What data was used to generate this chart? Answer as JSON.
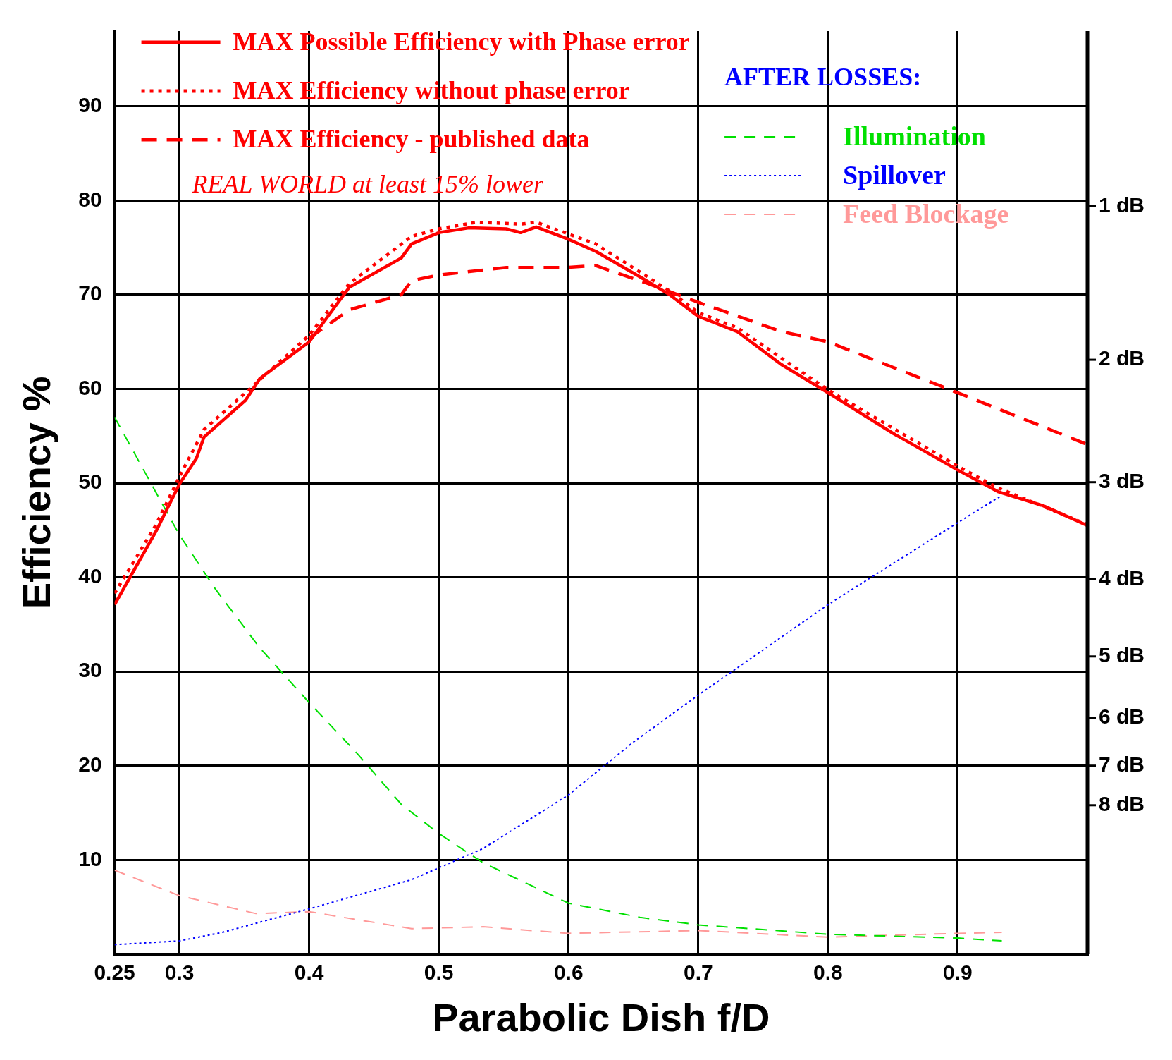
{
  "chart_data": {
    "type": "line",
    "xlabel": "Parabolic Dish f/D",
    "ylabel": "Efficiency %",
    "xlim": [
      0.25,
      1.0
    ],
    "xticks": [
      0.25,
      0.3,
      0.4,
      0.5,
      0.6,
      0.7,
      0.8,
      0.9
    ],
    "ylim": [
      0,
      98
    ],
    "yticks": [
      10,
      20,
      30,
      40,
      50,
      60,
      70,
      80,
      90
    ],
    "grid": true,
    "legend": "top",
    "marker": "none",
    "annotations": [
      "REAL WORLD at least 15% lower",
      "AFTER LOSSES:"
    ],
    "ref_lines": [
      {
        "axis": "y",
        "value": 79.4,
        "label": "1 dB"
      },
      {
        "axis": "y",
        "value": 63.1,
        "label": "2 dB"
      },
      {
        "axis": "y",
        "value": 50.1,
        "label": "3 dB"
      },
      {
        "axis": "y",
        "value": 39.8,
        "label": "4 dB"
      },
      {
        "axis": "y",
        "value": 31.6,
        "label": "5 dB"
      },
      {
        "axis": "y",
        "value": 25.1,
        "label": "6 dB"
      },
      {
        "axis": "y",
        "value": 20.0,
        "label": "7 dB"
      },
      {
        "axis": "y",
        "value": 15.8,
        "label": "8 dB"
      }
    ],
    "series": [
      {
        "name": "MAX Possible Efficiency with Phase error",
        "color": "#ff0000",
        "line_style": "solid",
        "x": [
          0.25,
          0.282,
          0.3,
          0.313,
          0.319,
          0.351,
          0.362,
          0.4,
          0.431,
          0.471,
          0.479,
          0.5,
          0.523,
          0.552,
          0.563,
          0.575,
          0.598,
          0.621,
          0.655,
          0.678,
          0.7,
          0.73,
          0.764,
          0.8,
          0.85,
          0.9,
          0.931,
          0.966,
          1.0
        ],
        "values": [
          37.1,
          44.9,
          49.9,
          52.6,
          54.9,
          58.8,
          61.1,
          65.0,
          70.8,
          73.9,
          75.4,
          76.6,
          77.1,
          77.0,
          76.6,
          77.2,
          76.0,
          74.6,
          71.9,
          70.0,
          67.7,
          66.1,
          62.6,
          59.6,
          55.3,
          51.4,
          49.1,
          47.6,
          45.5
        ]
      },
      {
        "name": "MAX Efficiency without phase error",
        "color": "#ff0000",
        "line_style": "dotted",
        "x": [
          0.25,
          0.282,
          0.3,
          0.319,
          0.351,
          0.4,
          0.431,
          0.479,
          0.5,
          0.529,
          0.563,
          0.575,
          0.621,
          0.678,
          0.7,
          0.73,
          0.8,
          0.9,
          0.931,
          1.0
        ],
        "values": [
          38.3,
          45.6,
          50.7,
          55.7,
          59.6,
          65.7,
          71.2,
          76.2,
          77.0,
          77.7,
          77.5,
          77.7,
          75.4,
          70.4,
          68.1,
          66.5,
          59.9,
          51.8,
          49.5,
          45.6
        ]
      },
      {
        "name": "MAX Efficiency - published data",
        "color": "#ff0000",
        "line_style": "dashed",
        "x": [
          0.4,
          0.431,
          0.471,
          0.479,
          0.5,
          0.552,
          0.598,
          0.621,
          0.661,
          0.7,
          0.764,
          0.8,
          0.85,
          0.9,
          1.0
        ],
        "values": [
          65.4,
          68.4,
          70.0,
          71.5,
          72.1,
          72.9,
          72.9,
          73.1,
          71.2,
          69.2,
          66.1,
          65.0,
          62.3,
          59.6,
          54.1
        ]
      },
      {
        "name": "Illumination",
        "color": "#00e000",
        "line_style": "dashed",
        "x": [
          0.25,
          0.3,
          0.328,
          0.362,
          0.4,
          0.437,
          0.471,
          0.5,
          0.534,
          0.6,
          0.655,
          0.7,
          0.8,
          0.9,
          0.934
        ],
        "values": [
          57.0,
          44.5,
          38.7,
          32.5,
          26.7,
          21.3,
          15.9,
          12.8,
          9.7,
          5.4,
          3.9,
          3.1,
          2.1,
          1.7,
          1.4
        ]
      },
      {
        "name": "Spillover",
        "color": "#0000ff",
        "line_style": "dotted",
        "x": [
          0.25,
          0.3,
          0.333,
          0.4,
          0.479,
          0.534,
          0.6,
          0.649,
          0.7,
          0.8,
          0.9,
          0.934
        ],
        "values": [
          1.0,
          1.4,
          2.3,
          4.8,
          7.9,
          11.2,
          16.9,
          22.4,
          27.5,
          37.1,
          45.8,
          48.7
        ]
      },
      {
        "name": "Feed Blockage",
        "color": "#ff9999",
        "line_style": "dashed",
        "x": [
          0.25,
          0.3,
          0.359,
          0.4,
          0.479,
          0.534,
          0.6,
          0.7,
          0.8,
          0.9,
          0.934
        ],
        "values": [
          8.9,
          6.2,
          4.3,
          4.5,
          2.7,
          2.9,
          2.2,
          2.5,
          1.8,
          2.2,
          2.3
        ]
      }
    ]
  }
}
